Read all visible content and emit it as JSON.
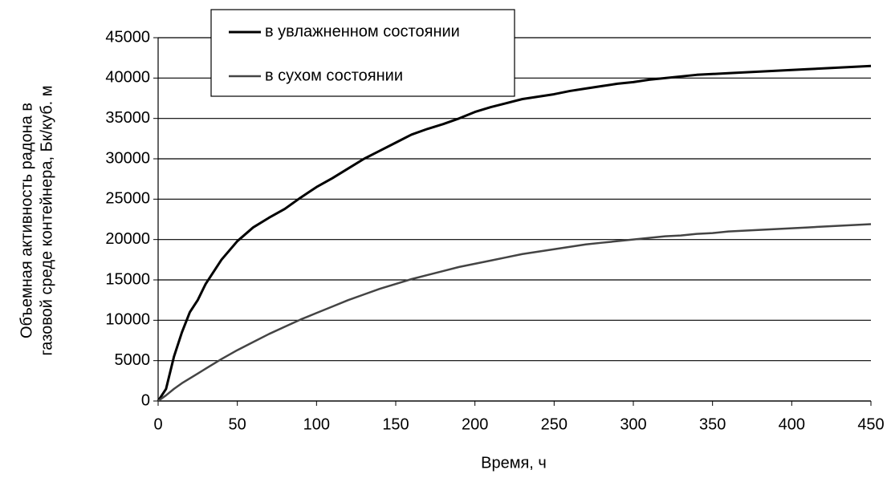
{
  "chart_data": {
    "type": "line",
    "xlabel": "Время, ч",
    "ylabel": [
      "Объемная активность радона в",
      "газовой среде контейнера, Бк/куб. м"
    ],
    "x": [
      0,
      5,
      10,
      15,
      20,
      25,
      30,
      40,
      50,
      60,
      70,
      80,
      90,
      100,
      110,
      120,
      130,
      140,
      150,
      160,
      170,
      180,
      190,
      200,
      210,
      220,
      230,
      240,
      250,
      260,
      270,
      280,
      290,
      300,
      310,
      320,
      330,
      340,
      350,
      360,
      370,
      380,
      390,
      400,
      410,
      420,
      430,
      440,
      450
    ],
    "series": [
      {
        "name": "в увлажненном состоянии",
        "color": "#000000",
        "width": 3,
        "values": [
          0,
          1500,
          5500,
          8500,
          11000,
          12500,
          14500,
          17500,
          19800,
          21500,
          22700,
          23800,
          25200,
          26500,
          27600,
          28800,
          30000,
          31000,
          32000,
          33000,
          33700,
          34300,
          35000,
          35800,
          36400,
          36900,
          37400,
          37700,
          38000,
          38400,
          38700,
          39000,
          39300,
          39500,
          39800,
          40000,
          40200,
          40400,
          40500,
          40600,
          40700,
          40800,
          40900,
          41000,
          41100,
          41200,
          41300,
          41400,
          41500
        ]
      },
      {
        "name": "в сухом состоянии",
        "color": "#444444",
        "width": 2.5,
        "values": [
          0,
          700,
          1500,
          2200,
          2800,
          3400,
          4000,
          5200,
          6300,
          7300,
          8300,
          9200,
          10100,
          10900,
          11700,
          12500,
          13200,
          13900,
          14500,
          15100,
          15600,
          16100,
          16600,
          17000,
          17400,
          17800,
          18200,
          18500,
          18800,
          19100,
          19400,
          19600,
          19800,
          20000,
          20200,
          20400,
          20500,
          20700,
          20800,
          21000,
          21100,
          21200,
          21300,
          21400,
          21500,
          21600,
          21700,
          21800,
          21900
        ]
      }
    ],
    "xlim": [
      0,
      450
    ],
    "xticks": [
      0,
      50,
      100,
      150,
      200,
      250,
      300,
      350,
      400,
      450
    ],
    "ylim": [
      0,
      45000
    ],
    "yticks": [
      0,
      5000,
      10000,
      15000,
      20000,
      25000,
      30000,
      35000,
      40000,
      45000
    ],
    "grid": true,
    "legend": "top-left"
  }
}
